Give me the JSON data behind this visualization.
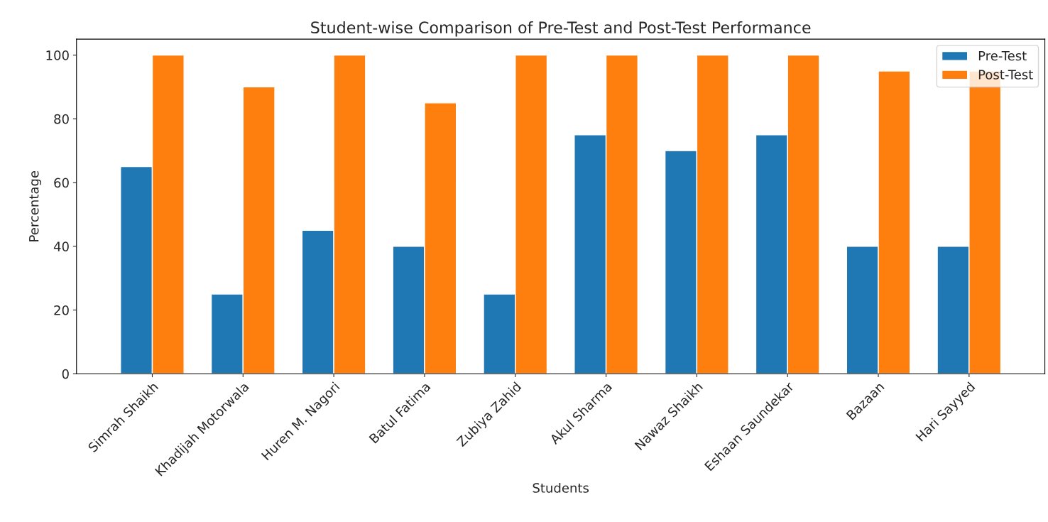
{
  "chart_data": {
    "type": "bar",
    "title": "Student-wise Comparison of Pre-Test and Post-Test Performance",
    "xlabel": "Students",
    "ylabel": "Percentage",
    "categories": [
      "Simrah Shaikh",
      "Khadijah Motorwala",
      "Huren M. Nagori",
      "Batul Fatima",
      "Zubiya Zahid",
      "Akul Sharma",
      "Nawaz Shaikh",
      "Eshaan Saundekar",
      "Bazaan",
      "Hari Sayyed"
    ],
    "series": [
      {
        "name": "Pre-Test",
        "color": "#1f77b4",
        "values": [
          65,
          25,
          45,
          40,
          25,
          75,
          70,
          75,
          40,
          40
        ]
      },
      {
        "name": "Post-Test",
        "color": "#ff7f0e",
        "values": [
          100,
          90,
          100,
          85,
          100,
          100,
          100,
          100,
          95,
          95
        ]
      }
    ],
    "ylim": [
      0,
      105
    ],
    "yticks": [
      0,
      20,
      40,
      60,
      80,
      100
    ],
    "grid": false,
    "legend": "top right"
  }
}
